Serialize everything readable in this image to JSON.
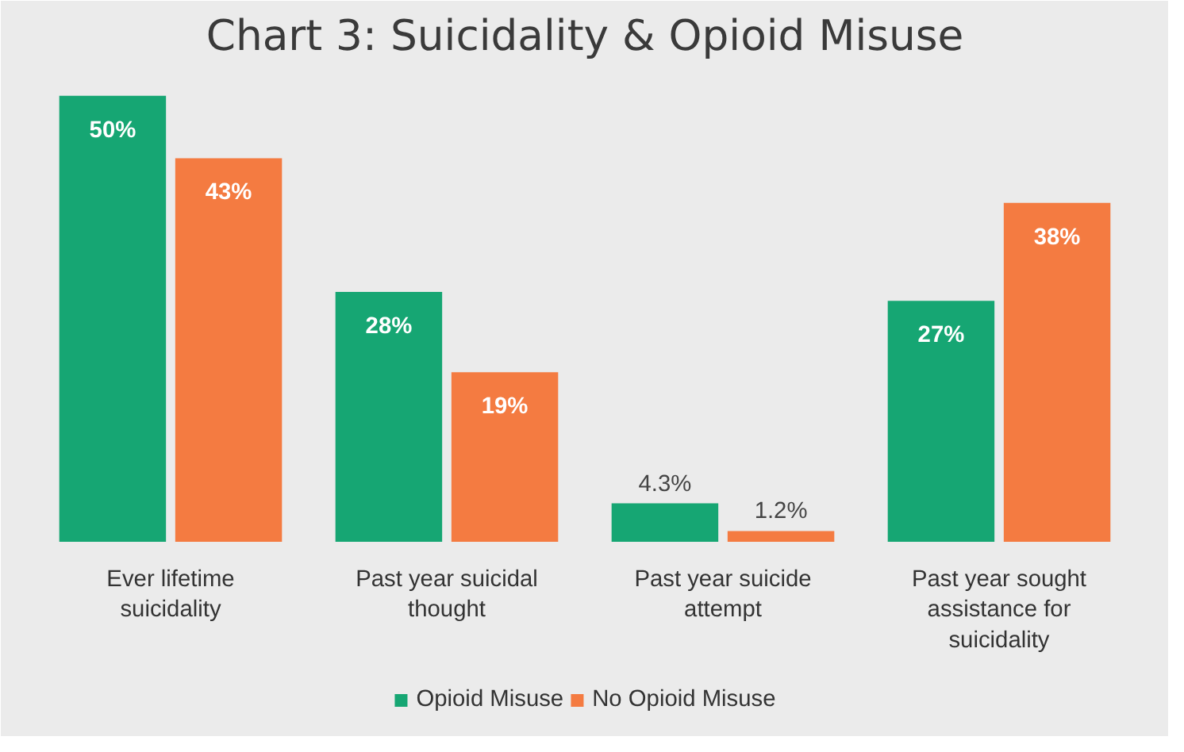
{
  "chart_data": {
    "type": "bar",
    "title": "Chart 3: Suicidality & Opioid Misuse",
    "categories": [
      "Ever lifetime suicidality",
      "Past year suicidal thought",
      "Past year suicide attempt",
      "Past year sought assistance for suicidality"
    ],
    "series": [
      {
        "name": "Opioid Misuse",
        "color": "#16a673",
        "values": [
          50,
          28,
          4.3,
          27
        ],
        "value_labels": [
          "50%",
          "28%",
          "4.3%",
          "27%"
        ]
      },
      {
        "name": "No Opioid Misuse",
        "color": "#f47b41",
        "values": [
          43,
          19,
          1.2,
          38
        ],
        "value_labels": [
          "43%",
          "19%",
          "1.2%",
          "38%"
        ]
      }
    ],
    "legend": "bottom"
  }
}
